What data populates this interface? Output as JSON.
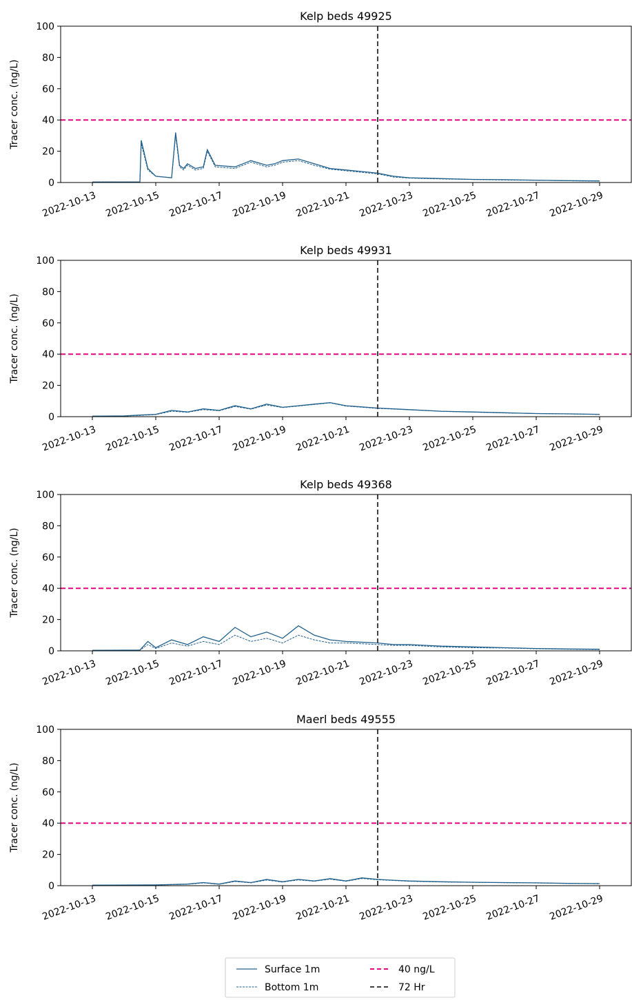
{
  "legend": {
    "placement": "bottom-center",
    "columns": 2,
    "entries": [
      {
        "label": "Surface 1m",
        "color": "#1f5f8b",
        "style": "solid"
      },
      {
        "label": "Bottom 1m",
        "color": "#1f5f8b",
        "style": "dotted"
      },
      {
        "label": "40 ng/L",
        "color": "#e6007e",
        "style": "dashed"
      },
      {
        "label": "72 Hr",
        "color": "#404040",
        "style": "dashed"
      }
    ]
  },
  "chart_data": [
    {
      "type": "line",
      "title": "Kelp beds 49925",
      "ylabel": "Tracer conc. (ng/L)",
      "xlabel": "",
      "xlim": [
        "2022-10-12",
        "2022-10-30"
      ],
      "ylim": [
        0,
        100
      ],
      "yticks": [
        0,
        20,
        40,
        60,
        80,
        100
      ],
      "xticks": [
        "2022-10-13",
        "2022-10-15",
        "2022-10-17",
        "2022-10-19",
        "2022-10-21",
        "2022-10-23",
        "2022-10-25",
        "2022-10-27",
        "2022-10-29"
      ],
      "grid": false,
      "hline": {
        "y": 40,
        "color": "#e6007e"
      },
      "vline": {
        "x": "2022-10-22T00:00",
        "color": "#404040"
      },
      "series": [
        {
          "name": "Surface 1m",
          "style": "solid",
          "color": "#1f5f8b",
          "x": [
            "2022-10-13T00:00",
            "2022-10-14T12:00",
            "2022-10-14T13:00",
            "2022-10-14T18:00",
            "2022-10-15T00:00",
            "2022-10-15T12:00",
            "2022-10-15T15:00",
            "2022-10-15T18:00",
            "2022-10-15T21:00",
            "2022-10-16T00:00",
            "2022-10-16T06:00",
            "2022-10-16T12:00",
            "2022-10-16T15:00",
            "2022-10-16T21:00",
            "2022-10-17T12:00",
            "2022-10-17T18:00",
            "2022-10-18T00:00",
            "2022-10-18T12:00",
            "2022-10-18T18:00",
            "2022-10-19T00:00",
            "2022-10-19T12:00",
            "2022-10-20T00:00",
            "2022-10-20T12:00",
            "2022-10-21T00:00",
            "2022-10-22T00:00",
            "2022-10-22T12:00",
            "2022-10-23T00:00",
            "2022-10-24T00:00",
            "2022-10-25T00:00",
            "2022-10-26T00:00",
            "2022-10-27T00:00",
            "2022-10-28T00:00",
            "2022-10-29T00:00"
          ],
          "y": [
            0.3,
            0.3,
            27,
            9,
            4,
            3,
            32,
            11,
            9,
            12,
            9,
            10,
            21,
            11,
            10,
            12,
            14,
            11,
            12,
            14,
            15,
            12,
            9,
            8,
            6,
            4,
            3,
            2.5,
            2,
            1.8,
            1.5,
            1.2,
            1
          ]
        },
        {
          "name": "Bottom 1m",
          "style": "dotted",
          "color": "#1f5f8b",
          "x": [
            "2022-10-13T00:00",
            "2022-10-14T12:00",
            "2022-10-14T13:00",
            "2022-10-14T18:00",
            "2022-10-15T00:00",
            "2022-10-15T12:00",
            "2022-10-15T15:00",
            "2022-10-15T18:00",
            "2022-10-15T21:00",
            "2022-10-16T00:00",
            "2022-10-16T06:00",
            "2022-10-16T12:00",
            "2022-10-16T15:00",
            "2022-10-16T21:00",
            "2022-10-17T12:00",
            "2022-10-17T18:00",
            "2022-10-18T00:00",
            "2022-10-18T12:00",
            "2022-10-18T18:00",
            "2022-10-19T00:00",
            "2022-10-19T12:00",
            "2022-10-20T00:00",
            "2022-10-20T12:00",
            "2022-10-21T00:00",
            "2022-10-22T00:00",
            "2022-10-22T12:00",
            "2022-10-23T00:00",
            "2022-10-24T00:00",
            "2022-10-25T00:00",
            "2022-10-26T00:00",
            "2022-10-27T00:00",
            "2022-10-28T00:00",
            "2022-10-29T00:00"
          ],
          "y": [
            0.3,
            0.3,
            25,
            8,
            4,
            3,
            30,
            10,
            8,
            11,
            8,
            9,
            20,
            10,
            9,
            11,
            13,
            10,
            11,
            13,
            14,
            11,
            8.5,
            7.5,
            5.5,
            3.5,
            2.8,
            2.3,
            1.9,
            1.6,
            1.4,
            1.1,
            0.9
          ]
        }
      ]
    },
    {
      "type": "line",
      "title": "Kelp beds 49931",
      "ylabel": "Tracer conc. (ng/L)",
      "xlabel": "",
      "xlim": [
        "2022-10-12",
        "2022-10-30"
      ],
      "ylim": [
        0,
        100
      ],
      "yticks": [
        0,
        20,
        40,
        60,
        80,
        100
      ],
      "xticks": [
        "2022-10-13",
        "2022-10-15",
        "2022-10-17",
        "2022-10-19",
        "2022-10-21",
        "2022-10-23",
        "2022-10-25",
        "2022-10-27",
        "2022-10-29"
      ],
      "grid": false,
      "hline": {
        "y": 40,
        "color": "#e6007e"
      },
      "vline": {
        "x": "2022-10-22T00:00",
        "color": "#404040"
      },
      "series": [
        {
          "name": "Surface 1m",
          "style": "solid",
          "color": "#1f5f8b",
          "x": [
            "2022-10-13T00:00",
            "2022-10-14T00:00",
            "2022-10-14T12:00",
            "2022-10-15T00:00",
            "2022-10-15T12:00",
            "2022-10-16T00:00",
            "2022-10-16T12:00",
            "2022-10-17T00:00",
            "2022-10-17T12:00",
            "2022-10-18T00:00",
            "2022-10-18T12:00",
            "2022-10-19T00:00",
            "2022-10-19T12:00",
            "2022-10-20T00:00",
            "2022-10-20T12:00",
            "2022-10-21T00:00",
            "2022-10-22T00:00",
            "2022-10-23T00:00",
            "2022-10-24T00:00",
            "2022-10-25T00:00",
            "2022-10-26T00:00",
            "2022-10-27T00:00",
            "2022-10-28T00:00",
            "2022-10-29T00:00"
          ],
          "y": [
            0.3,
            0.5,
            1,
            1.5,
            4,
            3,
            5,
            4,
            7,
            5,
            8,
            6,
            7,
            8,
            9,
            7,
            5.5,
            4.5,
            3.5,
            3,
            2.5,
            2,
            1.8,
            1.5
          ]
        },
        {
          "name": "Bottom 1m",
          "style": "dotted",
          "color": "#1f5f8b",
          "x": [
            "2022-10-13T00:00",
            "2022-10-14T00:00",
            "2022-10-14T12:00",
            "2022-10-15T00:00",
            "2022-10-15T12:00",
            "2022-10-16T00:00",
            "2022-10-16T12:00",
            "2022-10-17T00:00",
            "2022-10-17T12:00",
            "2022-10-18T00:00",
            "2022-10-18T12:00",
            "2022-10-19T00:00",
            "2022-10-19T12:00",
            "2022-10-20T00:00",
            "2022-10-20T12:00",
            "2022-10-21T00:00",
            "2022-10-22T00:00",
            "2022-10-23T00:00",
            "2022-10-24T00:00",
            "2022-10-25T00:00",
            "2022-10-26T00:00",
            "2022-10-27T00:00",
            "2022-10-28T00:00",
            "2022-10-29T00:00"
          ],
          "y": [
            0.3,
            0.4,
            0.8,
            1.3,
            3.5,
            2.8,
            4.5,
            3.8,
            6.5,
            4.8,
            7.5,
            5.8,
            6.8,
            7.8,
            8.8,
            6.8,
            5.3,
            4.4,
            3.4,
            2.9,
            2.4,
            2,
            1.7,
            1.4
          ]
        }
      ]
    },
    {
      "type": "line",
      "title": "Kelp beds 49368",
      "ylabel": "Tracer conc. (ng/L)",
      "xlabel": "",
      "xlim": [
        "2022-10-12",
        "2022-10-30"
      ],
      "ylim": [
        0,
        100
      ],
      "yticks": [
        0,
        20,
        40,
        60,
        80,
        100
      ],
      "xticks": [
        "2022-10-13",
        "2022-10-15",
        "2022-10-17",
        "2022-10-19",
        "2022-10-21",
        "2022-10-23",
        "2022-10-25",
        "2022-10-27",
        "2022-10-29"
      ],
      "grid": false,
      "hline": {
        "y": 40,
        "color": "#e6007e"
      },
      "vline": {
        "x": "2022-10-22T00:00",
        "color": "#404040"
      },
      "series": [
        {
          "name": "Surface 1m",
          "style": "solid",
          "color": "#1f5f8b",
          "x": [
            "2022-10-13T00:00",
            "2022-10-14T12:00",
            "2022-10-14T18:00",
            "2022-10-15T00:00",
            "2022-10-15T12:00",
            "2022-10-16T00:00",
            "2022-10-16T12:00",
            "2022-10-17T00:00",
            "2022-10-17T12:00",
            "2022-10-18T00:00",
            "2022-10-18T12:00",
            "2022-10-19T00:00",
            "2022-10-19T12:00",
            "2022-10-20T00:00",
            "2022-10-20T12:00",
            "2022-10-21T00:00",
            "2022-10-22T00:00",
            "2022-10-22T12:00",
            "2022-10-23T00:00",
            "2022-10-24T00:00",
            "2022-10-25T00:00",
            "2022-10-26T00:00",
            "2022-10-27T00:00",
            "2022-10-28T00:00",
            "2022-10-29T00:00"
          ],
          "y": [
            0.3,
            0.5,
            6,
            2,
            7,
            4,
            9,
            6,
            15,
            9,
            12,
            8,
            16,
            10,
            7,
            6,
            5,
            4,
            4,
            3,
            2.5,
            2,
            1.5,
            1.2,
            1
          ]
        },
        {
          "name": "Bottom 1m",
          "style": "dotted",
          "color": "#1f5f8b",
          "x": [
            "2022-10-13T00:00",
            "2022-10-14T12:00",
            "2022-10-14T18:00",
            "2022-10-15T00:00",
            "2022-10-15T12:00",
            "2022-10-16T00:00",
            "2022-10-16T12:00",
            "2022-10-17T00:00",
            "2022-10-17T12:00",
            "2022-10-18T00:00",
            "2022-10-18T12:00",
            "2022-10-19T00:00",
            "2022-10-19T12:00",
            "2022-10-20T00:00",
            "2022-10-20T12:00",
            "2022-10-21T00:00",
            "2022-10-22T00:00",
            "2022-10-22T12:00",
            "2022-10-23T00:00",
            "2022-10-24T00:00",
            "2022-10-25T00:00",
            "2022-10-26T00:00",
            "2022-10-27T00:00",
            "2022-10-28T00:00",
            "2022-10-29T00:00"
          ],
          "y": [
            0.3,
            0.4,
            4,
            1.5,
            5,
            3,
            6,
            4,
            10,
            6,
            8,
            5,
            10,
            7,
            5,
            5,
            4,
            3.5,
            3.5,
            2.5,
            2,
            1.8,
            1.3,
            1,
            0.8
          ]
        }
      ]
    },
    {
      "type": "line",
      "title": "Maerl beds 49555",
      "ylabel": "Tracer conc. (ng/L)",
      "xlabel": "",
      "xlim": [
        "2022-10-12",
        "2022-10-30"
      ],
      "ylim": [
        0,
        100
      ],
      "yticks": [
        0,
        20,
        40,
        60,
        80,
        100
      ],
      "xticks": [
        "2022-10-13",
        "2022-10-15",
        "2022-10-17",
        "2022-10-19",
        "2022-10-21",
        "2022-10-23",
        "2022-10-25",
        "2022-10-27",
        "2022-10-29"
      ],
      "grid": false,
      "hline": {
        "y": 40,
        "color": "#e6007e"
      },
      "vline": {
        "x": "2022-10-22T00:00",
        "color": "#404040"
      },
      "series": [
        {
          "name": "Surface 1m",
          "style": "solid",
          "color": "#1f5f8b",
          "x": [
            "2022-10-13T00:00",
            "2022-10-15T00:00",
            "2022-10-16T00:00",
            "2022-10-16T12:00",
            "2022-10-17T00:00",
            "2022-10-17T12:00",
            "2022-10-18T00:00",
            "2022-10-18T12:00",
            "2022-10-19T00:00",
            "2022-10-19T12:00",
            "2022-10-20T00:00",
            "2022-10-20T12:00",
            "2022-10-21T00:00",
            "2022-10-21T12:00",
            "2022-10-22T00:00",
            "2022-10-22T12:00",
            "2022-10-23T00:00",
            "2022-10-24T00:00",
            "2022-10-25T00:00",
            "2022-10-26T00:00",
            "2022-10-27T00:00",
            "2022-10-28T00:00",
            "2022-10-29T00:00"
          ],
          "y": [
            0.3,
            0.5,
            1,
            2,
            1,
            3,
            2,
            4,
            2.5,
            4,
            3,
            4.5,
            3,
            5,
            4,
            3.5,
            3,
            2.5,
            2.2,
            2,
            1.8,
            1.5,
            1.3
          ]
        },
        {
          "name": "Bottom 1m",
          "style": "dotted",
          "color": "#1f5f8b",
          "x": [
            "2022-10-13T00:00",
            "2022-10-15T00:00",
            "2022-10-16T00:00",
            "2022-10-16T12:00",
            "2022-10-17T00:00",
            "2022-10-17T12:00",
            "2022-10-18T00:00",
            "2022-10-18T12:00",
            "2022-10-19T00:00",
            "2022-10-19T12:00",
            "2022-10-20T00:00",
            "2022-10-20T12:00",
            "2022-10-21T00:00",
            "2022-10-21T12:00",
            "2022-10-22T00:00",
            "2022-10-22T12:00",
            "2022-10-23T00:00",
            "2022-10-24T00:00",
            "2022-10-25T00:00",
            "2022-10-26T00:00",
            "2022-10-27T00:00",
            "2022-10-28T00:00",
            "2022-10-29T00:00"
          ],
          "y": [
            0.3,
            0.4,
            0.9,
            1.8,
            0.9,
            2.7,
            1.8,
            3.6,
            2.3,
            3.7,
            2.8,
            4.2,
            2.8,
            4.6,
            3.8,
            3.3,
            2.8,
            2.4,
            2.1,
            1.9,
            1.7,
            1.4,
            1.2
          ]
        }
      ]
    }
  ]
}
